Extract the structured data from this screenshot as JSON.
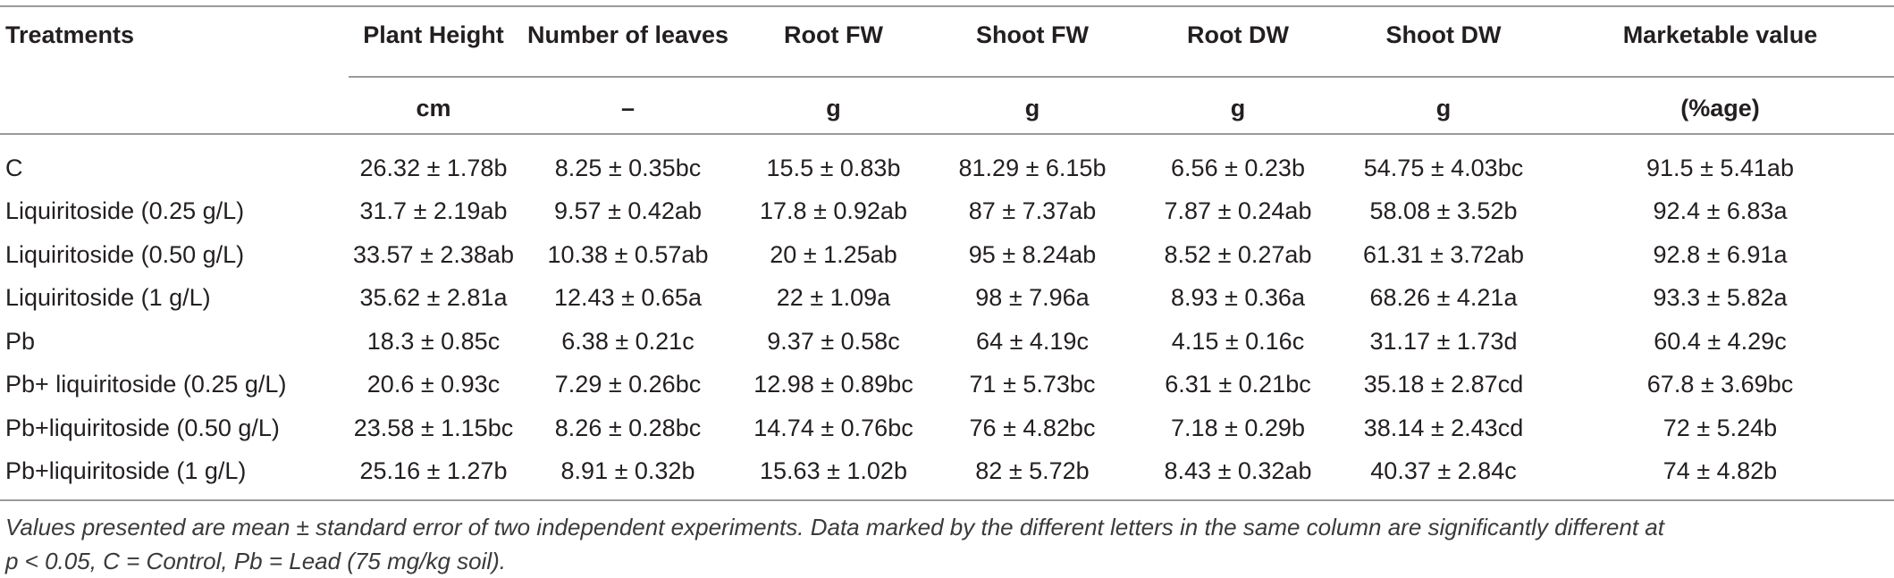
{
  "table": {
    "headers": [
      "Treatments",
      "Plant Height",
      "Number of leaves",
      "Root FW",
      "Shoot FW",
      "Root DW",
      "Shoot DW",
      "Marketable value"
    ],
    "units": [
      "",
      "cm",
      "–",
      "g",
      "g",
      "g",
      "g",
      "(%age)"
    ],
    "rows": [
      [
        "C",
        "26.32 ± 1.78b",
        "8.25 ± 0.35bc",
        "15.5 ± 0.83b",
        "81.29 ± 6.15b",
        "6.56 ± 0.23b",
        "54.75 ± 4.03bc",
        "91.5 ± 5.41ab"
      ],
      [
        "Liquiritoside (0.25 g/L)",
        "31.7 ± 2.19ab",
        "9.57 ± 0.42ab",
        "17.8 ± 0.92ab",
        "87 ± 7.37ab",
        "7.87 ± 0.24ab",
        "58.08 ± 3.52b",
        "92.4 ± 6.83a"
      ],
      [
        "Liquiritoside (0.50 g/L)",
        "33.57 ± 2.38ab",
        "10.38 ± 0.57ab",
        "20 ± 1.25ab",
        "95 ± 8.24ab",
        "8.52 ± 0.27ab",
        "61.31 ± 3.72ab",
        "92.8 ± 6.91a"
      ],
      [
        "Liquiritoside (1 g/L)",
        "35.62 ± 2.81a",
        "12.43 ± 0.65a",
        "22 ± 1.09a",
        "98 ± 7.96a",
        "8.93 ± 0.36a",
        "68.26 ± 4.21a",
        "93.3 ± 5.82a"
      ],
      [
        "Pb",
        "18.3 ± 0.85c",
        "6.38 ± 0.21c",
        "9.37 ± 0.58c",
        "64 ± 4.19c",
        "4.15 ± 0.16c",
        "31.17 ± 1.73d",
        "60.4 ± 4.29c"
      ],
      [
        "Pb+ liquiritoside (0.25 g/L)",
        "20.6 ± 0.93c",
        "7.29 ± 0.26bc",
        "12.98 ± 0.89bc",
        "71 ± 5.73bc",
        "6.31 ± 0.21bc",
        "35.18 ± 2.87cd",
        "67.8 ± 3.69bc"
      ],
      [
        "Pb+liquiritoside (0.50 g/L)",
        "23.58 ± 1.15bc",
        "8.26 ± 0.28bc",
        "14.74 ± 0.76bc",
        "76 ± 4.82bc",
        "7.18 ± 0.29b",
        "38.14 ± 2.43cd",
        "72 ± 5.24b"
      ],
      [
        "Pb+liquiritoside (1 g/L)",
        "25.16 ± 1.27b",
        "8.91 ± 0.32b",
        "15.63 ± 1.02b",
        "82 ± 5.72b",
        "8.43 ± 0.32ab",
        "40.37 ± 2.84c",
        "74 ± 4.82b"
      ]
    ]
  },
  "footnote": {
    "line1": "Values presented are mean ± standard error of two independent experiments. Data marked by the different letters in the same column are significantly different at",
    "line2": "p < 0.05, C = Control, Pb = Lead (75 mg/kg soil)."
  }
}
